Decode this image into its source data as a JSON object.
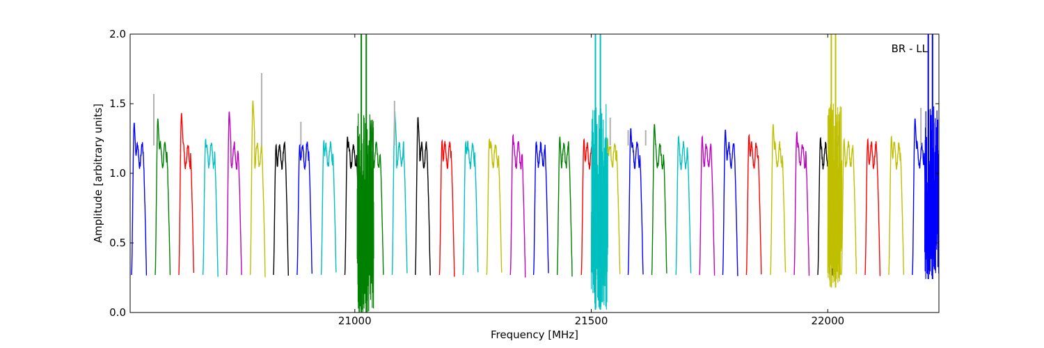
{
  "chart_data": {
    "type": "line",
    "title": "",
    "annotation": "BR - LL",
    "xlabel": "Frequency [MHz]",
    "ylabel": "Amplitude [arbitrary units]",
    "xlim": [
      20525,
      22235
    ],
    "ylim": [
      0.0,
      2.0
    ],
    "xticks": [
      21000,
      21500,
      22000
    ],
    "xtick_labels": [
      "21000",
      "21500",
      "22000"
    ],
    "yticks": [
      0.0,
      0.5,
      1.0,
      1.5,
      2.0
    ],
    "ytick_labels": [
      "0.0",
      "0.5",
      "1.0",
      "1.5",
      "2.0"
    ],
    "grid": false,
    "raw_spectrum_color": "#b0b0b0",
    "palette": [
      "#0000ff",
      "#008000",
      "#ff0000",
      "#00bfbf",
      "#bf00bf",
      "#bfbf00",
      "#000000"
    ],
    "channel_width_mhz": 31.5,
    "channel_start_mhz": [
      20528,
      20578,
      20628,
      20679,
      20729,
      20779,
      20828,
      20878,
      20929,
      20979,
      21029,
      21079,
      21128,
      21179,
      21229,
      21279,
      21329,
      21378,
      21428,
      21479,
      21529,
      21578,
      21628,
      21679,
      21729,
      21778,
      21828,
      21879,
      21929,
      21979,
      22029,
      22079,
      22129,
      22179
    ],
    "channel_color_index": [
      0,
      1,
      2,
      3,
      4,
      5,
      6,
      0,
      3,
      6,
      1,
      3,
      6,
      2,
      3,
      5,
      4,
      0,
      1,
      2,
      5,
      0,
      1,
      3,
      4,
      0,
      2,
      5,
      4,
      6,
      5,
      2,
      5,
      0
    ],
    "channel_peak": [
      1.37,
      1.4,
      1.44,
      1.25,
      1.45,
      1.53,
      1.21,
      1.21,
      1.24,
      1.27,
      1.39,
      1.45,
      1.41,
      1.24,
      1.23,
      1.25,
      1.28,
      1.23,
      1.27,
      1.25,
      1.25,
      1.33,
      1.36,
      1.27,
      1.27,
      1.32,
      1.28,
      1.36,
      1.3,
      1.26,
      1.25,
      1.25,
      1.27,
      1.4
    ],
    "spikes": [
      {
        "x": 20575,
        "y": 1.57
      },
      {
        "x": 20803,
        "y": 1.72
      },
      {
        "x": 20886,
        "y": 1.37
      },
      {
        "x": 21084,
        "y": 1.52
      },
      {
        "x": 21540,
        "y": 1.4
      },
      {
        "x": 21578,
        "y": 1.31
      },
      {
        "x": 21615,
        "y": 1.31
      },
      {
        "x": 22023,
        "y": 1.27
      },
      {
        "x": 22197,
        "y": 1.47
      }
    ],
    "rfi_regions": [
      {
        "x_start": 21005,
        "x_end": 21040,
        "low": 0.0,
        "high": 2.0,
        "color_index": 1
      },
      {
        "x_start": 21500,
        "x_end": 21535,
        "low": 0.02,
        "high": 2.0,
        "color_index": 3
      },
      {
        "x_start": 22000,
        "x_end": 22030,
        "low": 0.18,
        "high": 2.0,
        "color_index": 5
      },
      {
        "x_start": 22205,
        "x_end": 22235,
        "low": 0.24,
        "high": 2.0,
        "color_index": 0
      }
    ]
  }
}
